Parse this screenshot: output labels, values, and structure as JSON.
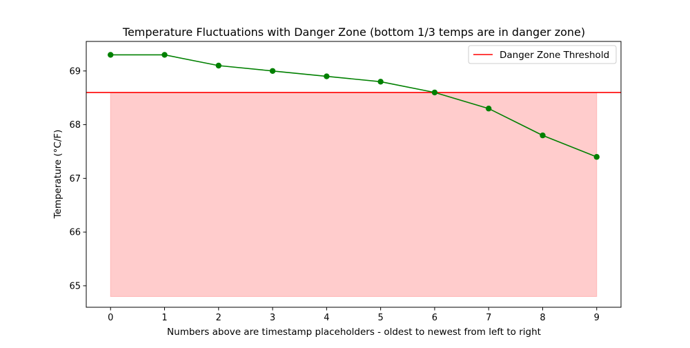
{
  "chart_data": {
    "type": "line",
    "title": "Temperature Fluctuations with Danger Zone (bottom 1/3 temps are in danger zone)",
    "xlabel": "Numbers above are timestamp placeholders - oldest to newest from left to right",
    "ylabel": "Temperature (°C/F)",
    "x": [
      0,
      1,
      2,
      3,
      4,
      5,
      6,
      7,
      8,
      9
    ],
    "series": [
      {
        "values": [
          69.3,
          69.3,
          69.1,
          69.0,
          68.9,
          68.8,
          68.6,
          68.3,
          67.8,
          67.4
        ],
        "color": "#008000",
        "marker": "circle"
      }
    ],
    "threshold": {
      "name": "Danger Zone Threshold",
      "value": 68.6,
      "color": "#ff0000"
    },
    "danger_fill": {
      "x_start": 0,
      "x_end": 9,
      "y_bottom": 64.8,
      "y_top": 68.6,
      "color": "#ff9999"
    },
    "xticks": [
      0,
      1,
      2,
      3,
      4,
      5,
      6,
      7,
      8,
      9
    ],
    "yticks": [
      65,
      66,
      67,
      68,
      69
    ],
    "xlim": [
      -0.45,
      9.45
    ],
    "ylim": [
      64.6,
      69.55
    ],
    "grid": false,
    "legend_position": "top-right"
  }
}
